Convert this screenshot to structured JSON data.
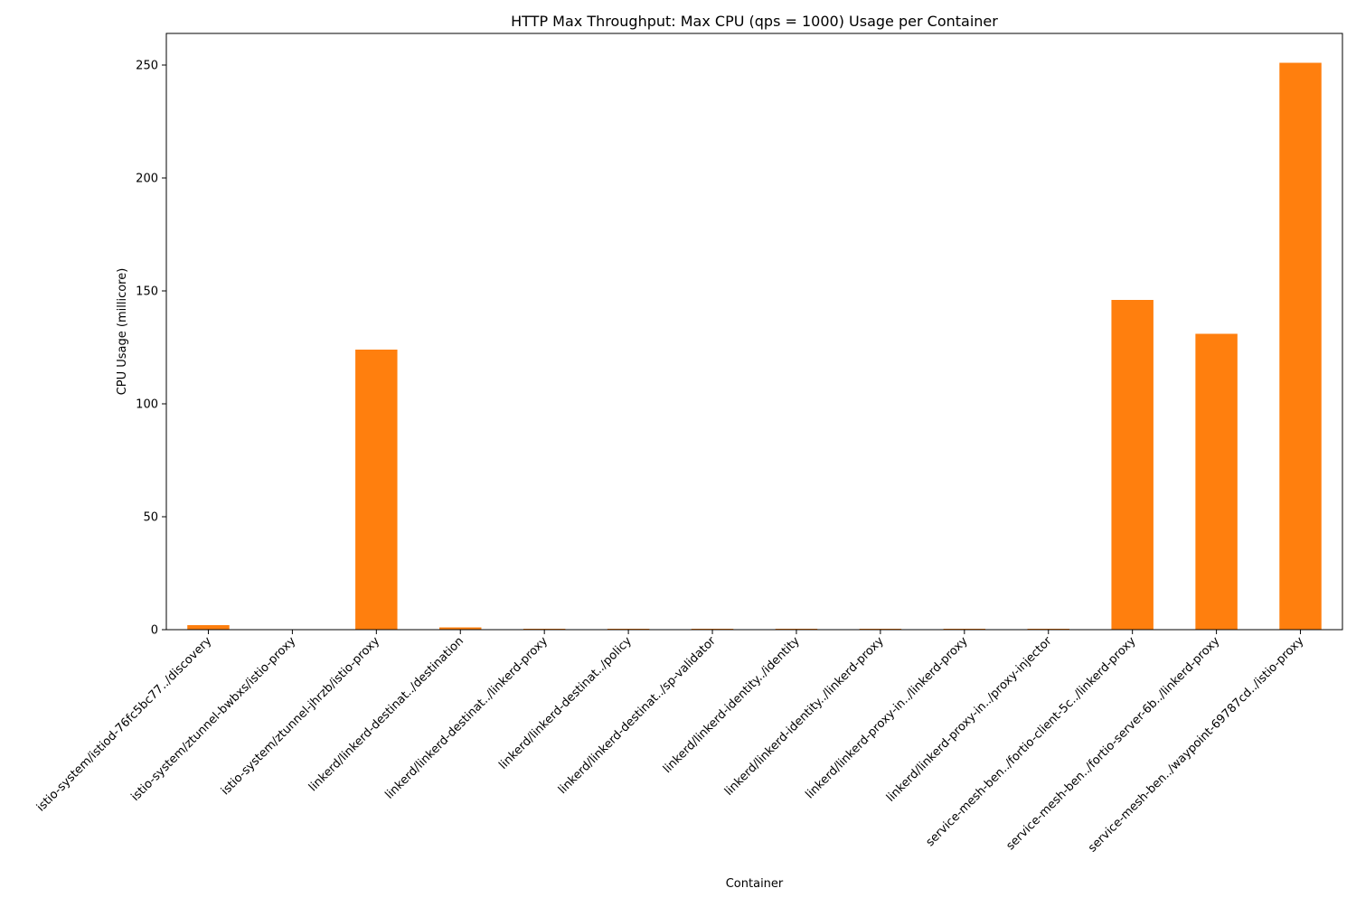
{
  "chart_data": {
    "type": "bar",
    "title": "HTTP Max Throughput: Max CPU (qps = 1000) Usage per Container",
    "xlabel": "Container",
    "ylabel": "CPU Usage (millicore)",
    "ylim": [
      0,
      264
    ],
    "yticks": [
      0,
      50,
      100,
      150,
      200,
      250
    ],
    "grid": false,
    "legend": "none",
    "bar_color": "#ff7f0e",
    "categories": [
      "istio-system/istiod-76fc5bc77../discovery",
      "istio-system/ztunnel-bwbxs/istio-proxy",
      "istio-system/ztunnel-jhrzb/istio-proxy",
      "linkerd/linkerd-destinat../destination",
      "linkerd/linkerd-destinat../linkerd-proxy",
      "linkerd/linkerd-destinat../policy",
      "linkerd/linkerd-destinat../sp-validator",
      "linkerd/linkerd-identity../identity",
      "linkerd/linkerd-identity../linkerd-proxy",
      "linkerd/linkerd-proxy-in../linkerd-proxy",
      "linkerd/linkerd-proxy-in../proxy-injector",
      "service-mesh-ben../fortio-client-5c../linkerd-proxy",
      "service-mesh-ben../fortio-server-6b../linkerd-proxy",
      "service-mesh-ben../waypoint-69787cd../istio-proxy"
    ],
    "values": [
      2,
      0,
      124,
      1,
      0.4,
      0.4,
      0.4,
      0.4,
      0.4,
      0.4,
      0.4,
      146,
      131,
      251
    ]
  }
}
